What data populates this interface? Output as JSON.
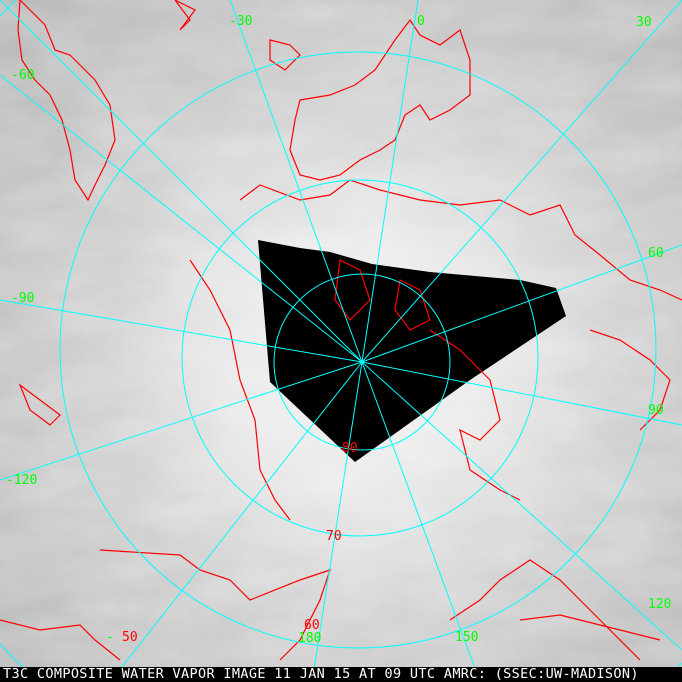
{
  "caption": "T3C COMPOSITE WATER VAPOR IMAGE 11 JAN 15 AT 09 UTC AMRC: (SSEC:UW-MADISON)",
  "colors": {
    "grid": "#00ffff",
    "coast": "#ff0000",
    "longitude_labels": "#00ff00",
    "latitude_labels": "#ff0000",
    "no_data": "#000000"
  },
  "longitude_labels": {
    "m30": "-30",
    "zero": "0",
    "p30": "30",
    "m60": "-60",
    "p60": "60",
    "m90": "-90",
    "p90": "90",
    "m120": "-120",
    "p120": "120",
    "p150": "150",
    "p180": "180",
    "minus_sign": "-"
  },
  "latitude_labels": {
    "l80": "80",
    "l70": "70",
    "l60": "60",
    "l50": "50"
  }
}
